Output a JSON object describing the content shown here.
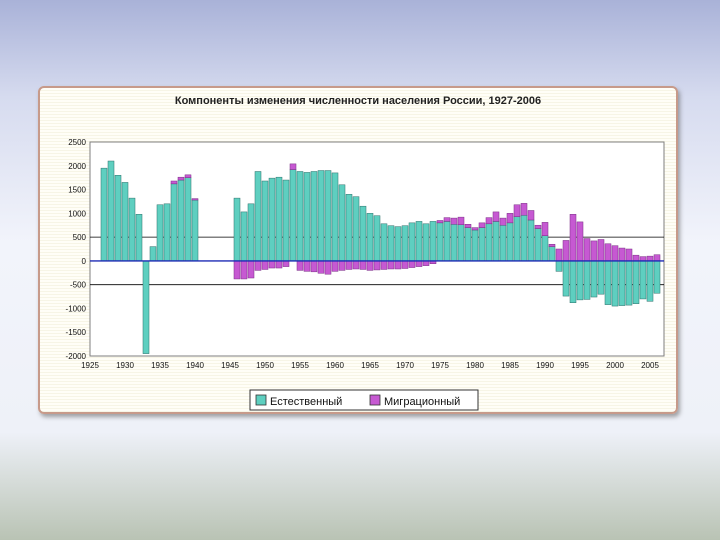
{
  "chart_data": {
    "type": "bar",
    "title": "Компоненты изменения численности населения России, 1927-2006",
    "xlabel": "",
    "ylabel": "",
    "ylim": [
      -2000,
      2500
    ],
    "xlim": [
      1925,
      2007
    ],
    "yticks": [
      2500,
      2000,
      1500,
      1000,
      500,
      0,
      -500,
      -1000,
      -1500,
      -2000
    ],
    "xticks": [
      1925,
      1930,
      1935,
      1940,
      1945,
      1950,
      1955,
      1960,
      1965,
      1970,
      1975,
      1980,
      1985,
      1990,
      1995,
      2000,
      2005
    ],
    "stacked": true,
    "legend_position": "bottom",
    "colors": {
      "natural": "#5ecfc0",
      "migration": "#c659d2",
      "background": "#ffffff",
      "zero_line": "#1d2ab5"
    },
    "series": [
      {
        "name": "Естественный",
        "points": [
          [
            1927,
            1950
          ],
          [
            1928,
            2100
          ],
          [
            1929,
            1800
          ],
          [
            1930,
            1650
          ],
          [
            1931,
            1320
          ],
          [
            1932,
            980
          ],
          [
            1933,
            -1950
          ],
          [
            1934,
            300
          ],
          [
            1935,
            1180
          ],
          [
            1936,
            1200
          ],
          [
            1937,
            1620
          ],
          [
            1938,
            1700
          ],
          [
            1939,
            1750
          ],
          [
            1940,
            1280
          ],
          [
            1946,
            1320
          ],
          [
            1947,
            1030
          ],
          [
            1948,
            1200
          ],
          [
            1949,
            1880
          ],
          [
            1950,
            1680
          ],
          [
            1951,
            1740
          ],
          [
            1952,
            1760
          ],
          [
            1953,
            1700
          ],
          [
            1954,
            1920
          ],
          [
            1955,
            1880
          ],
          [
            1956,
            1860
          ],
          [
            1957,
            1880
          ],
          [
            1958,
            1900
          ],
          [
            1959,
            1900
          ],
          [
            1960,
            1850
          ],
          [
            1961,
            1600
          ],
          [
            1962,
            1400
          ],
          [
            1963,
            1350
          ],
          [
            1964,
            1150
          ],
          [
            1965,
            1000
          ],
          [
            1966,
            950
          ],
          [
            1967,
            780
          ],
          [
            1968,
            740
          ],
          [
            1969,
            720
          ],
          [
            1970,
            740
          ],
          [
            1971,
            800
          ],
          [
            1972,
            830
          ],
          [
            1973,
            780
          ],
          [
            1974,
            830
          ],
          [
            1975,
            800
          ],
          [
            1976,
            830
          ],
          [
            1977,
            770
          ],
          [
            1978,
            760
          ],
          [
            1979,
            700
          ],
          [
            1980,
            650
          ],
          [
            1981,
            700
          ],
          [
            1982,
            780
          ],
          [
            1983,
            830
          ],
          [
            1984,
            750
          ],
          [
            1985,
            800
          ],
          [
            1986,
            930
          ],
          [
            1987,
            960
          ],
          [
            1988,
            860
          ],
          [
            1989,
            680
          ],
          [
            1990,
            530
          ],
          [
            1991,
            300
          ],
          [
            1992,
            -220
          ],
          [
            1993,
            -740
          ],
          [
            1994,
            -880
          ],
          [
            1995,
            -820
          ],
          [
            1996,
            -810
          ],
          [
            1997,
            -760
          ],
          [
            1998,
            -700
          ],
          [
            1999,
            -920
          ],
          [
            2000,
            -950
          ],
          [
            2001,
            -940
          ],
          [
            2002,
            -930
          ],
          [
            2003,
            -900
          ],
          [
            2004,
            -800
          ],
          [
            2005,
            -850
          ],
          [
            2006,
            -680
          ]
        ]
      },
      {
        "name": "Миграционный",
        "points": [
          [
            1927,
            0
          ],
          [
            1928,
            0
          ],
          [
            1929,
            0
          ],
          [
            1930,
            0
          ],
          [
            1931,
            0
          ],
          [
            1932,
            0
          ],
          [
            1933,
            0
          ],
          [
            1934,
            0
          ],
          [
            1935,
            0
          ],
          [
            1936,
            0
          ],
          [
            1937,
            60
          ],
          [
            1938,
            60
          ],
          [
            1939,
            60
          ],
          [
            1940,
            30
          ],
          [
            1946,
            -380
          ],
          [
            1947,
            -380
          ],
          [
            1948,
            -360
          ],
          [
            1949,
            -200
          ],
          [
            1950,
            -180
          ],
          [
            1951,
            -150
          ],
          [
            1952,
            -150
          ],
          [
            1953,
            -120
          ],
          [
            1954,
            120
          ],
          [
            1955,
            -200
          ],
          [
            1956,
            -220
          ],
          [
            1957,
            -230
          ],
          [
            1958,
            -260
          ],
          [
            1959,
            -280
          ],
          [
            1960,
            -220
          ],
          [
            1961,
            -200
          ],
          [
            1962,
            -180
          ],
          [
            1963,
            -170
          ],
          [
            1964,
            -180
          ],
          [
            1965,
            -200
          ],
          [
            1966,
            -190
          ],
          [
            1967,
            -180
          ],
          [
            1968,
            -170
          ],
          [
            1969,
            -170
          ],
          [
            1970,
            -160
          ],
          [
            1971,
            -140
          ],
          [
            1972,
            -120
          ],
          [
            1973,
            -100
          ],
          [
            1974,
            -60
          ],
          [
            1975,
            50
          ],
          [
            1976,
            80
          ],
          [
            1977,
            130
          ],
          [
            1978,
            160
          ],
          [
            1979,
            70
          ],
          [
            1980,
            50
          ],
          [
            1981,
            100
          ],
          [
            1982,
            130
          ],
          [
            1983,
            200
          ],
          [
            1984,
            150
          ],
          [
            1985,
            200
          ],
          [
            1986,
            250
          ],
          [
            1987,
            250
          ],
          [
            1988,
            200
          ],
          [
            1989,
            70
          ],
          [
            1990,
            280
          ],
          [
            1991,
            50
          ],
          [
            1992,
            250
          ],
          [
            1993,
            430
          ],
          [
            1994,
            980
          ],
          [
            1995,
            820
          ],
          [
            1996,
            470
          ],
          [
            1997,
            420
          ],
          [
            1998,
            450
          ],
          [
            1999,
            360
          ],
          [
            2000,
            320
          ],
          [
            2001,
            270
          ],
          [
            2002,
            250
          ],
          [
            2003,
            120
          ],
          [
            2004,
            90
          ],
          [
            2005,
            100
          ],
          [
            2006,
            130
          ]
        ]
      }
    ]
  }
}
